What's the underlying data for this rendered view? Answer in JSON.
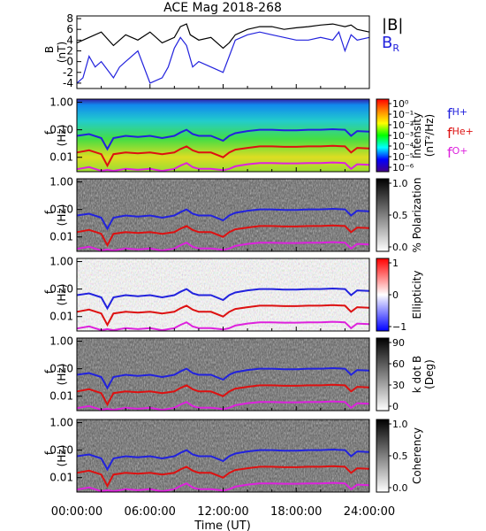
{
  "chart_data": {
    "title": "ACE Mag 2018-268",
    "xlabel": "Time (UT)",
    "x_ticks": [
      "00:00:00",
      "06:00:00",
      "12:00:00",
      "18:00:00",
      "24:00:00"
    ],
    "xlim_hours": [
      0,
      24
    ],
    "freq_ticks": [
      "1.00",
      "0.10",
      "0.01"
    ],
    "freq_range_hz": [
      0.003,
      1.3
    ],
    "panels": [
      {
        "type": "line",
        "ylabel": "B",
        "yunit": "(nT)",
        "ylim": [
          -5,
          8.5
        ],
        "y_ticks": [
          "8",
          "6",
          "4",
          "2",
          "0",
          "-2",
          "-4"
        ],
        "y_tick_values": [
          8,
          6,
          4,
          2,
          0,
          -2,
          -4
        ],
        "legend": [
          {
            "label": "|B|",
            "sub": "",
            "color": "#000000"
          },
          {
            "label": "B",
            "sub": "R",
            "color": "#2222dd"
          }
        ],
        "series": [
          {
            "key": "B_total",
            "color": "#000000",
            "x": [
              0,
              1,
              2,
              3,
              4,
              5,
              6,
              7,
              8,
              8.5,
              9,
              9.3,
              10,
              11,
              12,
              12.5,
              13,
              14,
              15,
              16,
              17,
              18,
              19,
              20,
              21,
              22,
              22.5,
              23,
              24
            ],
            "y": [
              3.5,
              4.5,
              5.5,
              3.0,
              5.0,
              4.0,
              5.5,
              3.5,
              4.5,
              6.5,
              7.0,
              5.0,
              4.0,
              4.5,
              2.5,
              3.5,
              5.0,
              6.0,
              6.5,
              6.5,
              6.0,
              6.3,
              6.5,
              6.8,
              7.0,
              6.5,
              6.8,
              6.0,
              5.5
            ]
          },
          {
            "key": "B_R",
            "color": "#2222dd",
            "x": [
              0,
              0.5,
              1,
              1.5,
              2,
              3,
              3.5,
              4,
              5,
              6,
              7,
              7.5,
              8,
              8.5,
              9,
              9.5,
              10,
              11,
              12,
              12.5,
              13,
              14,
              15,
              16,
              17,
              18,
              19,
              20,
              21,
              21.5,
              22,
              22.5,
              23,
              24
            ],
            "y": [
              -4.0,
              -3.0,
              1.0,
              -1.0,
              0.0,
              -3.0,
              -1.0,
              0.0,
              2.0,
              -4.0,
              -3.0,
              -1.0,
              2.5,
              4.5,
              3.0,
              -1.0,
              0.0,
              -1.0,
              -2.0,
              1.0,
              4.0,
              5.0,
              5.5,
              5.0,
              4.5,
              4.0,
              4.0,
              4.5,
              4.0,
              5.5,
              2.0,
              5.0,
              4.0,
              4.5
            ]
          }
        ]
      },
      {
        "type": "heatmap",
        "ylabel": "f",
        "yunit": "(Hz)",
        "colorbar": {
          "label": "Intensity",
          "unit": "(nT²/Hz)",
          "ticks": [
            "10⁰",
            "10⁻¹",
            "10⁻²",
            "10⁻³",
            "10⁻⁴",
            "10⁻⁵",
            "10⁻⁶"
          ],
          "scheme": "rainbow"
        },
        "gyro_labels": [
          {
            "label": "f",
            "sub": "H+",
            "color": "#2222dd"
          },
          {
            "label": "f",
            "sub": "He+",
            "color": "#dd1111"
          },
          {
            "label": "f",
            "sub": "O+",
            "color": "#dd22dd"
          }
        ]
      },
      {
        "type": "heatmap",
        "ylabel": "f",
        "yunit": "(Hz)",
        "colorbar": {
          "label": "% Polarization",
          "unit": "",
          "ticks": [
            "1.0",
            "0.5",
            "0.0"
          ],
          "scheme": "gray_inv"
        }
      },
      {
        "type": "heatmap",
        "ylabel": "f",
        "yunit": "(Hz)",
        "colorbar": {
          "label": "Ellipticity",
          "unit": "",
          "ticks": [
            "1",
            "0",
            "−1"
          ],
          "scheme": "bwr"
        }
      },
      {
        "type": "heatmap",
        "ylabel": "f",
        "yunit": "(Hz)",
        "colorbar": {
          "label": "k dot B",
          "unit": "(Deg)",
          "ticks": [
            "90",
            "60",
            "30",
            "0"
          ],
          "scheme": "gray_inv"
        }
      },
      {
        "type": "heatmap",
        "ylabel": "f",
        "yunit": "(Hz)",
        "colorbar": {
          "label": "Coherency",
          "unit": "",
          "ticks": [
            "1.0",
            "0.5",
            "0.0"
          ],
          "scheme": "gray_inv"
        }
      }
    ],
    "gyrofrequency_curves_hz": {
      "x": [
        0,
        1,
        2,
        2.5,
        3,
        4,
        5,
        6,
        7,
        8,
        8.5,
        9,
        9.5,
        10,
        11,
        12,
        12.5,
        13,
        14,
        15,
        16,
        17,
        18,
        19,
        20,
        21,
        22,
        22.5,
        23,
        24
      ],
      "H+": [
        0.06,
        0.07,
        0.05,
        0.02,
        0.05,
        0.06,
        0.055,
        0.06,
        0.05,
        0.06,
        0.08,
        0.1,
        0.07,
        0.06,
        0.06,
        0.04,
        0.06,
        0.075,
        0.09,
        0.1,
        0.1,
        0.095,
        0.095,
        0.1,
        0.1,
        0.105,
        0.1,
        0.06,
        0.09,
        0.085
      ],
      "He+": [
        0.015,
        0.018,
        0.013,
        0.005,
        0.013,
        0.015,
        0.014,
        0.015,
        0.013,
        0.015,
        0.02,
        0.025,
        0.018,
        0.015,
        0.015,
        0.01,
        0.015,
        0.019,
        0.022,
        0.025,
        0.025,
        0.024,
        0.024,
        0.025,
        0.025,
        0.026,
        0.025,
        0.015,
        0.022,
        0.021
      ],
      "O+": [
        0.0037,
        0.0044,
        0.0032,
        0.0035,
        0.0032,
        0.0038,
        0.0035,
        0.0038,
        0.0032,
        0.0038,
        0.005,
        0.0062,
        0.0044,
        0.0038,
        0.0038,
        0.0034,
        0.0038,
        0.0047,
        0.0056,
        0.0062,
        0.0062,
        0.006,
        0.006,
        0.0062,
        0.0062,
        0.0065,
        0.0062,
        0.0038,
        0.0056,
        0.0053
      ]
    }
  }
}
